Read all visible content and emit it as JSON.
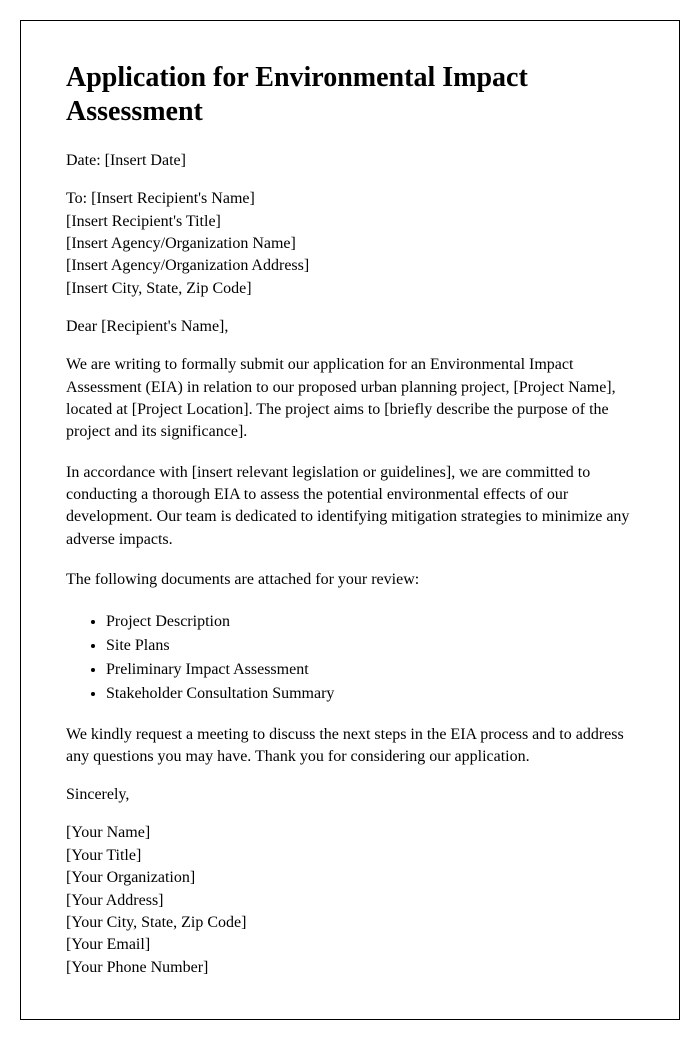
{
  "document": {
    "title": "Application for Environmental Impact Assessment",
    "date_label": "Date: [Insert Date]",
    "recipient": {
      "to_line": "To: [Insert Recipient's Name]",
      "title_line": "[Insert Recipient's Title]",
      "org_line": "[Insert Agency/Organization Name]",
      "address_line": "[Insert Agency/Organization Address]",
      "city_line": "[Insert City, State, Zip Code]"
    },
    "salutation": "Dear [Recipient's Name],",
    "paragraphs": {
      "p1": "We are writing to formally submit our application for an Environmental Impact Assessment (EIA) in relation to our proposed urban planning project, [Project Name], located at [Project Location]. The project aims to [briefly describe the purpose of the project and its significance].",
      "p2": "In accordance with [insert relevant legislation or guidelines], we are committed to conducting a thorough EIA to assess the potential environmental effects of our development. Our team is dedicated to identifying mitigation strategies to minimize any adverse impacts.",
      "p3": "The following documents are attached for your review:",
      "p4": "We kindly request a meeting to discuss the next steps in the EIA process and to address any questions you may have. Thank you for considering our application."
    },
    "attachments": {
      "item1": "Project Description",
      "item2": "Site Plans",
      "item3": "Preliminary Impact Assessment",
      "item4": "Stakeholder Consultation Summary"
    },
    "closing": "Sincerely,",
    "signature": {
      "name": "[Your Name]",
      "title": "[Your Title]",
      "org": "[Your Organization]",
      "address": "[Your Address]",
      "city": "[Your City, State, Zip Code]",
      "email": "[Your Email]",
      "phone": "[Your Phone Number]"
    }
  },
  "styling": {
    "title_fontsize": 28,
    "body_fontsize": 16,
    "font_family": "Times New Roman",
    "border_color": "#000000",
    "background_color": "#ffffff",
    "text_color": "#000000"
  }
}
